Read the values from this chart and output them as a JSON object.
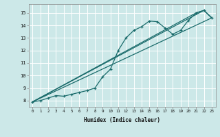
{
  "title": "",
  "xlabel": "Humidex (Indice chaleur)",
  "ylabel": "",
  "bg_color": "#cce8e8",
  "grid_color": "#ffffff",
  "line_color": "#1a6b6b",
  "xlim": [
    -0.5,
    23.5
  ],
  "ylim": [
    7.5,
    15.7
  ],
  "yticks": [
    8,
    9,
    10,
    11,
    12,
    13,
    14,
    15
  ],
  "xticks": [
    0,
    1,
    2,
    3,
    4,
    5,
    6,
    7,
    8,
    9,
    10,
    11,
    12,
    13,
    14,
    15,
    16,
    17,
    18,
    19,
    20,
    21,
    22,
    23
  ],
  "series_main": {
    "x": [
      0,
      1,
      2,
      3,
      4,
      5,
      6,
      7,
      8,
      9,
      10,
      11,
      12,
      13,
      14,
      15,
      16,
      17,
      18,
      19,
      20,
      21,
      22,
      23
    ],
    "y": [
      7.9,
      8.0,
      8.2,
      8.4,
      8.35,
      8.5,
      8.65,
      8.8,
      9.0,
      9.9,
      10.5,
      12.0,
      13.0,
      13.6,
      13.9,
      14.35,
      14.3,
      13.8,
      13.3,
      13.6,
      14.4,
      15.0,
      15.2,
      14.6
    ]
  },
  "series_line1": {
    "x": [
      0,
      23
    ],
    "y": [
      7.9,
      14.6
    ]
  },
  "series_line2": {
    "x": [
      0,
      22,
      23
    ],
    "y": [
      7.9,
      15.2,
      14.6
    ]
  },
  "series_line3": {
    "x": [
      0,
      21,
      22,
      23
    ],
    "y": [
      7.9,
      15.0,
      15.2,
      14.6
    ]
  }
}
